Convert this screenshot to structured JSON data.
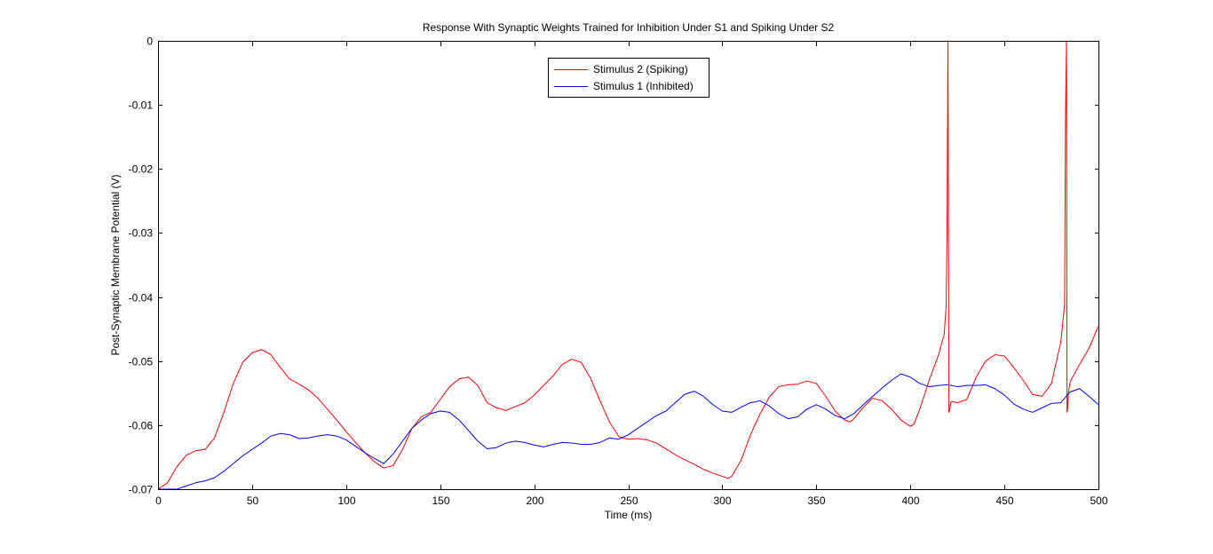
{
  "chart_data": {
    "type": "line",
    "title": "Response With Synaptic Weights Trained for Inhibition Under S1 and Spiking Under S2",
    "xlabel": "Time (ms)",
    "ylabel": "Post-Synaptic Membrane Potential (V)",
    "xlim": [
      0,
      500
    ],
    "ylim": [
      -0.07,
      0
    ],
    "xticks": [
      0,
      50,
      100,
      150,
      200,
      250,
      300,
      350,
      400,
      450,
      500
    ],
    "yticks": [
      0,
      -0.01,
      -0.02,
      -0.03,
      -0.04,
      -0.05,
      -0.06,
      -0.07
    ],
    "xtick_labels": [
      "0",
      "50",
      "100",
      "150",
      "200",
      "250",
      "300",
      "350",
      "400",
      "450",
      "500"
    ],
    "ytick_labels": [
      "0",
      "-0.01",
      "-0.02",
      "-0.03",
      "-0.04",
      "-0.05",
      "-0.06",
      "-0.07"
    ],
    "grid": false,
    "legend_position": "top-center",
    "series": [
      {
        "name": "Stimulus 2 (Spiking)",
        "color": "#ff0000",
        "x": [
          0,
          5,
          10,
          15,
          20,
          25,
          30,
          35,
          40,
          45,
          50,
          55,
          60,
          65,
          70,
          75,
          80,
          85,
          90,
          95,
          100,
          105,
          110,
          115,
          120,
          125,
          130,
          135,
          140,
          145,
          150,
          155,
          160,
          165,
          170,
          175,
          180,
          185,
          190,
          195,
          200,
          205,
          210,
          215,
          220,
          225,
          230,
          235,
          240,
          245,
          250,
          255,
          260,
          265,
          270,
          275,
          280,
          285,
          290,
          295,
          300,
          303,
          305,
          310,
          315,
          320,
          325,
          330,
          335,
          340,
          345,
          350,
          355,
          360,
          365,
          368,
          370,
          375,
          380,
          385,
          390,
          395,
          400,
          402,
          405,
          410,
          415,
          418,
          419,
          419.5,
          420,
          420.5,
          421,
          421.5,
          422,
          425,
          430,
          435,
          440,
          445,
          450,
          455,
          460,
          465,
          470,
          475,
          480,
          482,
          482.5,
          483,
          483.3,
          483.6,
          484,
          485,
          490,
          495,
          500
        ],
        "values": [
          -0.07,
          -0.069,
          -0.0665,
          -0.0647,
          -0.064,
          -0.0638,
          -0.062,
          -0.058,
          -0.0535,
          -0.0502,
          -0.0487,
          -0.0482,
          -0.049,
          -0.051,
          -0.0528,
          -0.0536,
          -0.0545,
          -0.0558,
          -0.0575,
          -0.0592,
          -0.061,
          -0.0627,
          -0.0643,
          -0.0657,
          -0.0667,
          -0.0663,
          -0.0638,
          -0.0605,
          -0.0587,
          -0.058,
          -0.056,
          -0.054,
          -0.0528,
          -0.0525,
          -0.0538,
          -0.0565,
          -0.0573,
          -0.0577,
          -0.0571,
          -0.0565,
          -0.0553,
          -0.0538,
          -0.0523,
          -0.0505,
          -0.0497,
          -0.0502,
          -0.0527,
          -0.0562,
          -0.0595,
          -0.0618,
          -0.0622,
          -0.0621,
          -0.0623,
          -0.0628,
          -0.0637,
          -0.0646,
          -0.0654,
          -0.0661,
          -0.0669,
          -0.0675,
          -0.068,
          -0.0683,
          -0.068,
          -0.0655,
          -0.0615,
          -0.0583,
          -0.0556,
          -0.054,
          -0.0537,
          -0.0536,
          -0.0531,
          -0.0535,
          -0.0555,
          -0.0578,
          -0.0592,
          -0.0595,
          -0.059,
          -0.0572,
          -0.0558,
          -0.0562,
          -0.0575,
          -0.0592,
          -0.0602,
          -0.0598,
          -0.0575,
          -0.053,
          -0.049,
          -0.0458,
          -0.0415,
          -0.03,
          0,
          -0.058,
          -0.0575,
          -0.0565,
          -0.0563,
          -0.0565,
          -0.056,
          -0.0525,
          -0.05,
          -0.049,
          -0.0492,
          -0.051,
          -0.053,
          -0.0552,
          -0.0555,
          -0.0535,
          -0.047,
          -0.0412,
          -0.0125,
          0,
          -0.058,
          -0.0575,
          -0.055,
          -0.0532,
          -0.0505,
          -0.048,
          -0.0445
        ]
      },
      {
        "name": "Stimulus 1 (Inhibited)",
        "color": "#0000ff",
        "x": [
          0,
          5,
          10,
          15,
          20,
          25,
          30,
          35,
          40,
          45,
          50,
          55,
          60,
          65,
          70,
          75,
          80,
          85,
          90,
          95,
          100,
          105,
          110,
          115,
          120,
          125,
          130,
          135,
          140,
          145,
          150,
          155,
          160,
          165,
          170,
          175,
          180,
          185,
          190,
          195,
          200,
          205,
          210,
          215,
          220,
          225,
          230,
          235,
          240,
          245,
          250,
          255,
          260,
          265,
          270,
          275,
          280,
          285,
          290,
          295,
          300,
          305,
          310,
          315,
          320,
          325,
          330,
          335,
          340,
          345,
          350,
          355,
          360,
          365,
          370,
          375,
          380,
          385,
          390,
          395,
          400,
          405,
          410,
          415,
          420,
          425,
          430,
          435,
          440,
          445,
          450,
          455,
          460,
          465,
          470,
          475,
          480,
          485,
          490,
          495,
          500
        ],
        "values": [
          -0.07,
          -0.07,
          -0.07,
          -0.0695,
          -0.069,
          -0.0687,
          -0.0682,
          -0.0672,
          -0.066,
          -0.0648,
          -0.0638,
          -0.0628,
          -0.0617,
          -0.0613,
          -0.0615,
          -0.0621,
          -0.062,
          -0.0617,
          -0.0615,
          -0.0617,
          -0.0623,
          -0.0633,
          -0.0643,
          -0.0652,
          -0.066,
          -0.0645,
          -0.0625,
          -0.0605,
          -0.0592,
          -0.0582,
          -0.0578,
          -0.058,
          -0.0592,
          -0.0608,
          -0.0625,
          -0.0637,
          -0.0635,
          -0.0628,
          -0.0625,
          -0.0627,
          -0.0631,
          -0.0634,
          -0.063,
          -0.0627,
          -0.0628,
          -0.063,
          -0.063,
          -0.0627,
          -0.062,
          -0.0622,
          -0.0615,
          -0.0605,
          -0.0595,
          -0.0585,
          -0.0578,
          -0.0565,
          -0.0552,
          -0.0547,
          -0.0555,
          -0.0568,
          -0.0578,
          -0.058,
          -0.0572,
          -0.0565,
          -0.0562,
          -0.057,
          -0.0582,
          -0.059,
          -0.0587,
          -0.0575,
          -0.0568,
          -0.0575,
          -0.0585,
          -0.059,
          -0.0582,
          -0.0568,
          -0.0555,
          -0.0542,
          -0.053,
          -0.052,
          -0.0525,
          -0.0535,
          -0.054,
          -0.0538,
          -0.0537,
          -0.054,
          -0.0538,
          -0.0538,
          -0.0537,
          -0.0543,
          -0.0553,
          -0.0567,
          -0.0575,
          -0.058,
          -0.0573,
          -0.0566,
          -0.0565,
          -0.0548,
          -0.0543,
          -0.0555,
          -0.0568
        ]
      }
    ]
  }
}
